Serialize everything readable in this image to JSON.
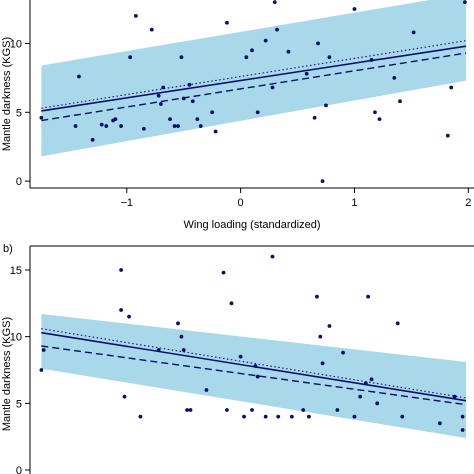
{
  "chart_data": [
    {
      "panel_label": "",
      "type": "scatter",
      "xlabel": "Wing loading (standardized)",
      "ylabel": "Mantle darkness (KGS)",
      "xlim": [
        -1.85,
        2.05
      ],
      "ylim": [
        -0.5,
        13.3
      ],
      "xticks": [
        -1,
        0,
        1,
        2
      ],
      "xtick_labels": [
        "−1",
        "0",
        "1",
        "2"
      ],
      "yticks": [
        0,
        5,
        10
      ],
      "ytick_labels": [
        "0",
        "5",
        "10"
      ],
      "colors": {
        "points": "#0b0f6b",
        "band": "#a8d8ea",
        "line": "#0b0f6b"
      },
      "band": {
        "x": [
          -1.75,
          1.98
        ],
        "lower": [
          1.8,
          7.3
        ],
        "upper": [
          8.4,
          13.6
        ]
      },
      "lines": [
        {
          "style": "solid",
          "x": [
            -1.75,
            1.98
          ],
          "y": [
            5.1,
            9.8
          ]
        },
        {
          "style": "dashed",
          "x": [
            -1.75,
            1.98
          ],
          "y": [
            4.4,
            9.3
          ]
        },
        {
          "style": "dotted",
          "x": [
            -1.75,
            1.98
          ],
          "y": [
            5.3,
            10.2
          ]
        }
      ],
      "points": [
        {
          "x": -1.75,
          "y": 4.6
        },
        {
          "x": -1.45,
          "y": 4.0
        },
        {
          "x": -1.42,
          "y": 7.6
        },
        {
          "x": -1.3,
          "y": 3.0
        },
        {
          "x": -1.22,
          "y": 4.1
        },
        {
          "x": -1.18,
          "y": 4.0
        },
        {
          "x": -1.12,
          "y": 4.4
        },
        {
          "x": -1.1,
          "y": 4.5
        },
        {
          "x": -1.05,
          "y": 4.0
        },
        {
          "x": -0.97,
          "y": 9.0
        },
        {
          "x": -0.92,
          "y": 12.0
        },
        {
          "x": -0.85,
          "y": 3.8
        },
        {
          "x": -0.78,
          "y": 11.0
        },
        {
          "x": -0.72,
          "y": 6.2
        },
        {
          "x": -0.7,
          "y": 5.6
        },
        {
          "x": -0.68,
          "y": 6.8
        },
        {
          "x": -0.62,
          "y": 4.5
        },
        {
          "x": -0.58,
          "y": 4.0
        },
        {
          "x": -0.55,
          "y": 4.0
        },
        {
          "x": -0.52,
          "y": 9.0
        },
        {
          "x": -0.5,
          "y": 6.0
        },
        {
          "x": -0.45,
          "y": 7.0
        },
        {
          "x": -0.42,
          "y": 5.8
        },
        {
          "x": -0.38,
          "y": 4.5
        },
        {
          "x": -0.35,
          "y": 4.0
        },
        {
          "x": -0.25,
          "y": 5.0
        },
        {
          "x": -0.22,
          "y": 3.6
        },
        {
          "x": -0.12,
          "y": 11.5
        },
        {
          "x": 0.05,
          "y": 9.0
        },
        {
          "x": 0.1,
          "y": 9.5
        },
        {
          "x": 0.15,
          "y": 5.0
        },
        {
          "x": 0.22,
          "y": 10.2
        },
        {
          "x": 0.28,
          "y": 6.8
        },
        {
          "x": 0.3,
          "y": 13.0
        },
        {
          "x": 0.32,
          "y": 11.0
        },
        {
          "x": 0.42,
          "y": 9.4
        },
        {
          "x": 0.58,
          "y": 7.8
        },
        {
          "x": 0.65,
          "y": 4.6
        },
        {
          "x": 0.68,
          "y": 10.0
        },
        {
          "x": 0.72,
          "y": 0.0
        },
        {
          "x": 0.75,
          "y": 5.5
        },
        {
          "x": 0.78,
          "y": 9.0
        },
        {
          "x": 1.0,
          "y": 12.5
        },
        {
          "x": 1.15,
          "y": 8.8
        },
        {
          "x": 1.18,
          "y": 5.0
        },
        {
          "x": 1.22,
          "y": 4.5
        },
        {
          "x": 1.35,
          "y": 7.5
        },
        {
          "x": 1.4,
          "y": 5.8
        },
        {
          "x": 1.52,
          "y": 10.8
        },
        {
          "x": 1.82,
          "y": 3.3
        },
        {
          "x": 1.85,
          "y": 6.8
        },
        {
          "x": 1.97,
          "y": 13.0
        }
      ]
    },
    {
      "panel_label": "b)",
      "type": "scatter",
      "xlabel": "",
      "ylabel": "Mantle darkness (KGS)",
      "xlim": [
        -1.85,
        2.05
      ],
      "ylim": [
        -0.3,
        16.8
      ],
      "xticks": [],
      "xtick_labels": [],
      "yticks": [
        0,
        5,
        10,
        15
      ],
      "ytick_labels": [
        "0",
        "5",
        "10",
        "15"
      ],
      "colors": {
        "points": "#0b0f6b",
        "band": "#a8d8ea",
        "line": "#0b0f6b"
      },
      "band": {
        "x": [
          -1.75,
          1.98
        ],
        "lower": [
          7.6,
          2.4
        ],
        "upper": [
          11.7,
          8.1
        ]
      },
      "lines": [
        {
          "style": "solid",
          "x": [
            -1.75,
            1.98
          ],
          "y": [
            10.3,
            5.2
          ]
        },
        {
          "style": "dashed",
          "x": [
            -1.75,
            1.98
          ],
          "y": [
            9.3,
            4.9
          ]
        },
        {
          "style": "dotted",
          "x": [
            -1.75,
            1.98
          ],
          "y": [
            10.6,
            5.4
          ]
        }
      ],
      "points": [
        {
          "x": -1.75,
          "y": 7.5
        },
        {
          "x": -1.73,
          "y": 9.0
        },
        {
          "x": -1.05,
          "y": 15.0
        },
        {
          "x": -1.05,
          "y": 12.0
        },
        {
          "x": -1.02,
          "y": 5.5
        },
        {
          "x": -0.98,
          "y": 11.5
        },
        {
          "x": -0.88,
          "y": 4.0
        },
        {
          "x": -0.72,
          "y": 9.0
        },
        {
          "x": -0.55,
          "y": 11.0
        },
        {
          "x": -0.52,
          "y": 10.0
        },
        {
          "x": -0.5,
          "y": 9.0
        },
        {
          "x": -0.47,
          "y": 4.5
        },
        {
          "x": -0.44,
          "y": 4.5
        },
        {
          "x": -0.3,
          "y": 6.0
        },
        {
          "x": -0.15,
          "y": 14.8
        },
        {
          "x": -0.12,
          "y": 4.5
        },
        {
          "x": -0.08,
          "y": 12.5
        },
        {
          "x": 0.0,
          "y": 8.5
        },
        {
          "x": 0.03,
          "y": 4.0
        },
        {
          "x": 0.1,
          "y": 4.5
        },
        {
          "x": 0.13,
          "y": 7.8
        },
        {
          "x": 0.15,
          "y": 7.0
        },
        {
          "x": 0.22,
          "y": 4.0
        },
        {
          "x": 0.28,
          "y": 16.0
        },
        {
          "x": 0.33,
          "y": 4.0
        },
        {
          "x": 0.45,
          "y": 4.0
        },
        {
          "x": 0.55,
          "y": 4.5
        },
        {
          "x": 0.6,
          "y": 4.0
        },
        {
          "x": 0.67,
          "y": 13.0
        },
        {
          "x": 0.7,
          "y": 10.0
        },
        {
          "x": 0.72,
          "y": 8.0
        },
        {
          "x": 0.78,
          "y": 10.8
        },
        {
          "x": 0.85,
          "y": 4.5
        },
        {
          "x": 0.9,
          "y": 8.8
        },
        {
          "x": 1.0,
          "y": 4.0
        },
        {
          "x": 1.05,
          "y": 5.5
        },
        {
          "x": 1.1,
          "y": 6.5
        },
        {
          "x": 1.12,
          "y": 13.0
        },
        {
          "x": 1.15,
          "y": 6.8
        },
        {
          "x": 1.2,
          "y": 5.0
        },
        {
          "x": 1.38,
          "y": 11.0
        },
        {
          "x": 1.42,
          "y": 4.0
        },
        {
          "x": 1.75,
          "y": 3.5
        },
        {
          "x": 1.88,
          "y": 5.5
        },
        {
          "x": 1.95,
          "y": 3.0
        },
        {
          "x": 1.95,
          "y": 4.0
        }
      ]
    }
  ]
}
